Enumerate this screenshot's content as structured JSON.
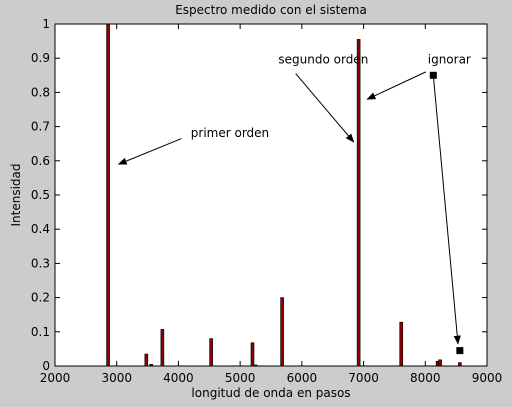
{
  "chart_data": {
    "type": "bar",
    "title": "Espectro medido con el sistema",
    "xlabel": "longitud de onda en pasos",
    "ylabel": "Intensidad",
    "xlim": [
      2000,
      9000
    ],
    "ylim": [
      0,
      1
    ],
    "xticks": [
      "2000",
      "3000",
      "4000",
      "5000",
      "6000",
      "7000",
      "8000",
      "9000"
    ],
    "yticks": [
      "0",
      "0.1",
      "0.2",
      "0.3",
      "0.4",
      "0.5",
      "0.6",
      "0.7",
      "0.8",
      "0.9",
      "1"
    ],
    "grid": false,
    "bar_color": "#8b0000",
    "bars": [
      {
        "x": 2860,
        "y": 1.0
      },
      {
        "x": 3480,
        "y": 0.035
      },
      {
        "x": 3560,
        "y": 0.005
      },
      {
        "x": 3740,
        "y": 0.107
      },
      {
        "x": 4530,
        "y": 0.08
      },
      {
        "x": 5200,
        "y": 0.068
      },
      {
        "x": 5250,
        "y": 0.003
      },
      {
        "x": 5680,
        "y": 0.2
      },
      {
        "x": 6920,
        "y": 0.955
      },
      {
        "x": 7610,
        "y": 0.128
      },
      {
        "x": 8200,
        "y": 0.014
      },
      {
        "x": 8240,
        "y": 0.018
      },
      {
        "x": 8560,
        "y": 0.01
      }
    ],
    "annotations": [
      {
        "text": "primer orden",
        "text_x": 4200,
        "text_y": 0.67,
        "arrow_from": [
          4050,
          0.665
        ],
        "arrow_to": [
          3030,
          0.59
        ]
      },
      {
        "text": "segundo orden",
        "text_x": 5620,
        "text_y": 0.885,
        "arrow_from": [
          5900,
          0.855
        ],
        "arrow_to": [
          6840,
          0.655
        ]
      },
      {
        "text": "ignorar",
        "text_x": 8040,
        "text_y": 0.885,
        "arrow_from": [
          8010,
          0.86
        ],
        "arrow_to": [
          7060,
          0.78
        ]
      }
    ],
    "markers": [
      {
        "x": 8130,
        "y": 0.85
      },
      {
        "x": 8560,
        "y": 0.045
      }
    ],
    "marker_arrow": {
      "from": [
        8130,
        0.85
      ],
      "to": [
        8530,
        0.065
      ]
    }
  }
}
